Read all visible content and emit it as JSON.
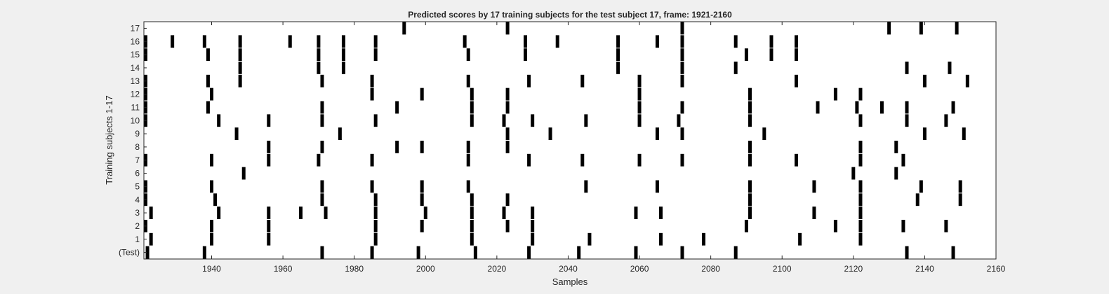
{
  "chart_data": {
    "type": "raster",
    "title": "Predicted scores by 17 training subjects for the test subject 17, frame: 1921-2160",
    "xlabel": "Samples",
    "ylabel": "Training subjects 1-17",
    "xlim": [
      1921,
      2160
    ],
    "x_ticks": [
      "1940",
      "1960",
      "1980",
      "2000",
      "2020",
      "2040",
      "2060",
      "2080",
      "2100",
      "2120",
      "2140",
      "2160"
    ],
    "x_tick_values": [
      1940,
      1960,
      1980,
      2000,
      2020,
      2040,
      2060,
      2080,
      2100,
      2120,
      2140,
      2160
    ],
    "y_ticks": [
      "(Test)",
      "1",
      "2",
      "3",
      "4",
      "5",
      "6",
      "7",
      "8",
      "9",
      "10",
      "11",
      "12",
      "13",
      "14",
      "15",
      "16",
      "17"
    ],
    "grid": false,
    "mark_color": "#000000",
    "rows": [
      {
        "label": "(Test)",
        "events": [
          1922,
          1938,
          1971,
          1985,
          1998,
          2014,
          2029,
          2043,
          2059,
          2072,
          2087,
          2135,
          2148
        ]
      },
      {
        "label": "1",
        "events": [
          1923,
          1940,
          1956,
          1986,
          2013,
          2030,
          2046,
          2066,
          2078,
          2105,
          2122
        ]
      },
      {
        "label": "2",
        "events": [
          1921,
          1940,
          1956,
          1986,
          1999,
          2013,
          2023,
          2030,
          2090,
          2115,
          2122,
          2134,
          2146
        ]
      },
      {
        "label": "3",
        "events": [
          1923,
          1942,
          1956,
          1965,
          1972,
          1986,
          2000,
          2013,
          2022,
          2030,
          2059,
          2066,
          2091,
          2109,
          2122
        ]
      },
      {
        "label": "4",
        "events": [
          1921,
          1941,
          1971,
          1986,
          1999,
          2013,
          2023,
          2091,
          2122,
          2138,
          2150
        ]
      },
      {
        "label": "5",
        "events": [
          1921,
          1940,
          1971,
          1985,
          1999,
          2012,
          2045,
          2065,
          2091,
          2109,
          2122,
          2139,
          2150
        ]
      },
      {
        "label": "6",
        "events": [
          1949,
          2120,
          2132
        ]
      },
      {
        "label": "7",
        "events": [
          1921,
          1940,
          1956,
          1970,
          1985,
          2012,
          2029,
          2044,
          2060,
          2072,
          2091,
          2104,
          2122,
          2134
        ]
      },
      {
        "label": "8",
        "events": [
          1956,
          1971,
          1992,
          1999,
          2012,
          2023,
          2091,
          2122,
          2132
        ]
      },
      {
        "label": "9",
        "events": [
          1947,
          1976,
          2023,
          2035,
          2065,
          2072,
          2095,
          2140,
          2151
        ]
      },
      {
        "label": "10",
        "events": [
          1920,
          1942,
          1956,
          1971,
          1986,
          2013,
          2022,
          2030,
          2045,
          2060,
          2071,
          2091,
          2122,
          2135,
          2146
        ]
      },
      {
        "label": "11",
        "events": [
          1921,
          1939,
          1971,
          1992,
          2013,
          2023,
          2060,
          2072,
          2091,
          2110,
          2121,
          2128,
          2135,
          2148
        ]
      },
      {
        "label": "12",
        "events": [
          1921,
          1940,
          1985,
          1999,
          2013,
          2023,
          2060,
          2091,
          2115,
          2122
        ]
      },
      {
        "label": "13",
        "events": [
          1921,
          1939,
          1948,
          1971,
          1985,
          2012,
          2029,
          2044,
          2060,
          2072,
          2104,
          2140,
          2152
        ]
      },
      {
        "label": "14",
        "events": [
          1948,
          1970,
          1977,
          2054,
          2072,
          2087,
          2135,
          2147
        ]
      },
      {
        "label": "15",
        "events": [
          1920,
          1939,
          1948,
          1970,
          1977,
          1986,
          2012,
          2028,
          2054,
          2072,
          2090,
          2097,
          2104
        ]
      },
      {
        "label": "16",
        "events": [
          1920,
          1929,
          1938,
          1948,
          1962,
          1970,
          1977,
          1986,
          2011,
          2028,
          2037,
          2054,
          2065,
          2072,
          2087,
          2097,
          2104
        ]
      },
      {
        "label": "17",
        "events": [
          1994,
          2023,
          2072,
          2130,
          2139,
          2149
        ]
      }
    ]
  }
}
